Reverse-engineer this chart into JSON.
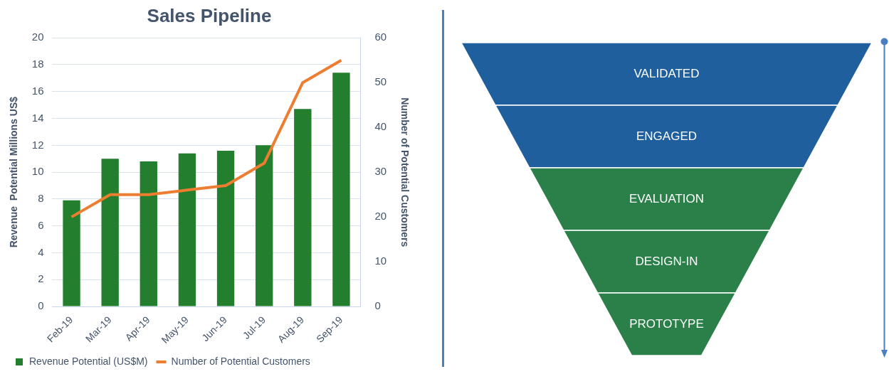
{
  "chart_data": [
    {
      "type": "bar",
      "title": "Sales Pipeline",
      "categories": [
        "Feb-19",
        "Mar-19",
        "Apr-19",
        "May-19",
        "Jun-19",
        "Jul-19",
        "Aug-19",
        "Sep-19"
      ],
      "series": [
        {
          "name": "Revenue Potential (US$M)",
          "type": "bar",
          "color": "#237f2d",
          "values": [
            7.9,
            11.0,
            10.8,
            11.4,
            11.6,
            12.0,
            14.7,
            17.4
          ]
        },
        {
          "name": "Number of Potential Customers",
          "type": "line",
          "axis": "y2",
          "color": "#ed7d31",
          "values": [
            20,
            25,
            25,
            26,
            27,
            32,
            50,
            55
          ]
        }
      ],
      "ylabel": "Revenue  Potential Millions US$",
      "y2label": "Number of Potential Customers",
      "ylim": [
        0,
        20
      ],
      "yticks": [
        0,
        2,
        4,
        6,
        8,
        10,
        12,
        14,
        16,
        18,
        20
      ],
      "y2lim": [
        0,
        60
      ],
      "y2ticks": [
        0,
        10,
        20,
        30,
        40,
        50,
        60
      ],
      "grid": "y",
      "legend": "bottom",
      "marker": "none"
    },
    {
      "type": "other",
      "categories": [
        "VALIDATED",
        "ENGAGED",
        "EVALUATION",
        "DESIGN-IN",
        "PROTOTYPE"
      ],
      "colors": [
        "#1f5f9e",
        "#1f5f9e",
        "#2a8048",
        "#2a8048",
        "#2a8048"
      ]
    }
  ]
}
